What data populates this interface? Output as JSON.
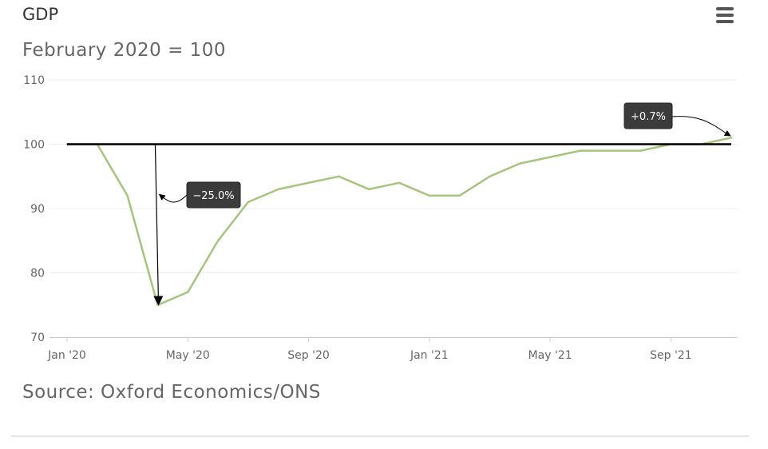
{
  "header": {
    "title": "GDP",
    "menu_icon": "hamburger-menu-icon"
  },
  "subtitle": "February 2020 = 100",
  "source": "Source: Oxford Economics/ONS",
  "colors": {
    "series": "#a6c47e",
    "reference_line": "#000000",
    "annotation_bg": "#3b3b3b",
    "grid": "#eeeeee",
    "axis_text": "#666666"
  },
  "chart_data": {
    "type": "line",
    "title": "GDP",
    "subtitle": "February 2020 = 100",
    "xlabel": "",
    "ylabel": "",
    "ylim": [
      70,
      110
    ],
    "y_ticks": [
      70,
      80,
      90,
      100,
      110
    ],
    "x_ticks": [
      "Jan '20",
      "May '20",
      "Sep '20",
      "Jan '21",
      "May '21",
      "Sep '21"
    ],
    "x": [
      "Jan '20",
      "Feb '20",
      "Mar '20",
      "Apr '20",
      "May '20",
      "Jun '20",
      "Jul '20",
      "Aug '20",
      "Sep '20",
      "Oct '20",
      "Nov '20",
      "Dec '20",
      "Jan '21",
      "Feb '21",
      "Mar '21",
      "Apr '21",
      "May '21",
      "Jun '21",
      "Jul '21",
      "Aug '21",
      "Sep '21",
      "Oct '21",
      "Nov '21"
    ],
    "series": [
      {
        "values": [
          100,
          100,
          92,
          75,
          77,
          85,
          91,
          93,
          94,
          95,
          93,
          94,
          92,
          92,
          95,
          97,
          98,
          99,
          99,
          99,
          100,
          100,
          101
        ]
      }
    ],
    "reference_line": {
      "value": 100
    },
    "grid": true,
    "legend": "none",
    "annotations": [
      {
        "text": "−25.0%",
        "x": "Apr '20",
        "y": 75
      },
      {
        "text": "+0.7%",
        "x": "Nov '21",
        "y": 101
      }
    ]
  }
}
